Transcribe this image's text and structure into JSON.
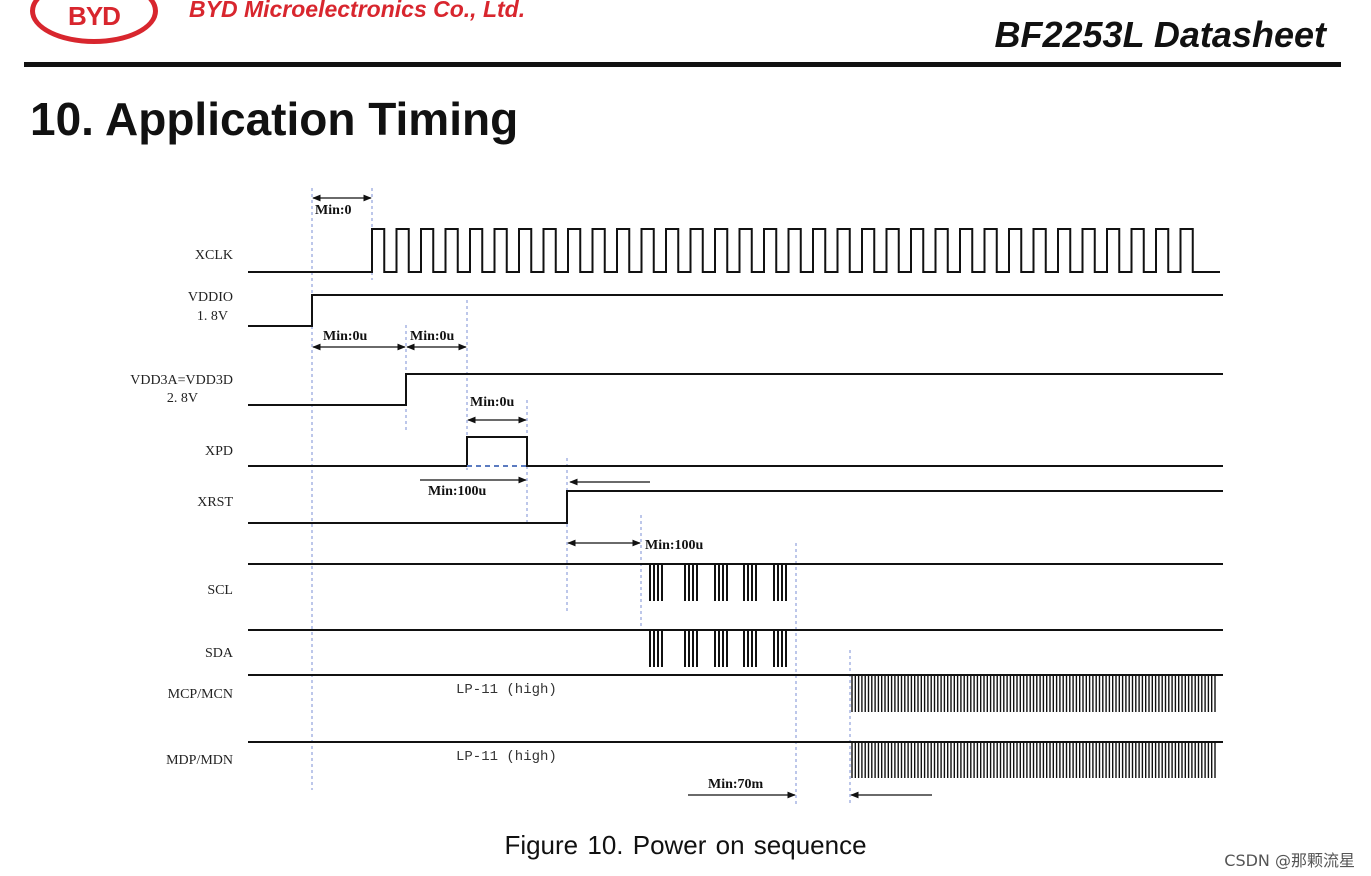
{
  "header": {
    "logo_text": "BYD",
    "company": "BYD Microelectronics Co., Ltd.",
    "doc_title": "BF2253L Datasheet"
  },
  "section_title": "10. Application Timing",
  "signals": {
    "xclk": "XCLK",
    "vddio": "VDDIO",
    "vddio_v": "1. 8V",
    "vdd": "VDD3A=VDD3D",
    "vdd_v": "2. 8V",
    "xpd": "XPD",
    "xrst": "XRST",
    "scl": "SCL",
    "sda": "SDA",
    "mcp": "MCP/MCN",
    "mdp": "MDP/MDN"
  },
  "annotations": {
    "min0": "Min:0",
    "min0u_a": "Min:0u",
    "min0u_b": "Min:0u",
    "min0u_c": "Min:0u",
    "min100u_a": "Min:100u",
    "min100u_b": "Min:100u",
    "min70m": "Min:70m",
    "lp11_a": "LP-11 (high)",
    "lp11_b": "LP-11 (high)"
  },
  "caption": "Figure 10.    Power on sequence",
  "watermark": "CSDN @那颗流星",
  "colors": {
    "brand_red": "#d8262e",
    "guide_blue": "#7b8fd6"
  }
}
